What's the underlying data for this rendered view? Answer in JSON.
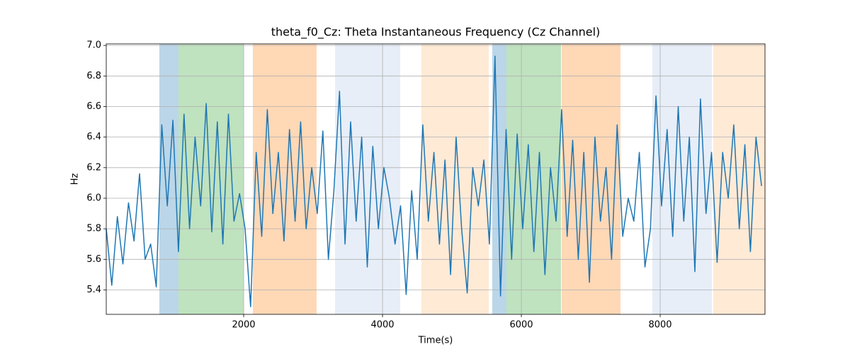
{
  "chart_data": {
    "type": "line",
    "title": "theta_f0_Cz: Theta Instantaneous Frequency (Cz Channel)",
    "x_label": "Time(s)",
    "y_label": "Hz",
    "xlim": [
      20,
      9510
    ],
    "ylim": [
      5.24,
      7.01
    ],
    "xticks": [
      2000,
      4000,
      6000,
      8000
    ],
    "yticks": [
      5.4,
      5.6,
      5.8,
      {
        "value": 6,
        "label": "6.0"
      },
      6.2,
      6.4,
      6.6,
      6.8,
      {
        "value": 7,
        "label": "7.0"
      }
    ],
    "grid": true,
    "spans": [
      {
        "start": 785,
        "end": 1061,
        "color": "#1f77b4"
      },
      {
        "start": 1061,
        "end": 2000,
        "color": "#2ca02c"
      },
      {
        "start": 2132,
        "end": 3050,
        "color": "#ff7f0e"
      },
      {
        "start": 3316,
        "end": 4255,
        "color": "#aec7e8"
      },
      {
        "start": 4561,
        "end": 5530,
        "color": "#ffbb78"
      },
      {
        "start": 5581,
        "end": 5785,
        "color": "#1f77b4"
      },
      {
        "start": 5785,
        "end": 6571,
        "color": "#2ca02c"
      },
      {
        "start": 6581,
        "end": 7428,
        "color": "#ff7f0e"
      },
      {
        "start": 7887,
        "end": 8744,
        "color": "#aec7e8"
      },
      {
        "start": 8765,
        "end": 9510,
        "color": "#ffbb78"
      }
    ],
    "x": [
      20,
      100,
      180,
      260,
      340,
      420,
      500,
      580,
      660,
      740,
      820,
      900,
      980,
      1060,
      1140,
      1220,
      1300,
      1380,
      1460,
      1540,
      1620,
      1700,
      1780,
      1860,
      1940,
      2020,
      2100,
      2180,
      2260,
      2340,
      2420,
      2500,
      2580,
      2660,
      2740,
      2820,
      2900,
      2980,
      3060,
      3140,
      3220,
      3300,
      3380,
      3460,
      3540,
      3620,
      3700,
      3780,
      3860,
      3940,
      4020,
      4100,
      4180,
      4260,
      4340,
      4420,
      4500,
      4580,
      4660,
      4740,
      4820,
      4900,
      4980,
      5060,
      5140,
      5220,
      5300,
      5380,
      5460,
      5540,
      5620,
      5700,
      5780,
      5860,
      5940,
      6020,
      6100,
      6180,
      6260,
      6340,
      6420,
      6500,
      6580,
      6660,
      6740,
      6820,
      6900,
      6980,
      7060,
      7140,
      7220,
      7300,
      7380,
      7460,
      7540,
      7620,
      7700,
      7780,
      7860,
      7940,
      8020,
      8100,
      8180,
      8260,
      8340,
      8420,
      8500,
      8580,
      8660,
      8740,
      8820,
      8900,
      8980,
      9060,
      9140,
      9220,
      9300,
      9380,
      9460
    ],
    "series": [
      {
        "color": "#1f77b4",
        "values": [
          5.8,
          5.43,
          5.88,
          5.57,
          5.97,
          5.72,
          6.16,
          5.6,
          5.7,
          5.42,
          6.48,
          5.95,
          6.51,
          5.65,
          6.55,
          5.8,
          6.4,
          5.95,
          6.62,
          5.78,
          6.5,
          5.7,
          6.55,
          5.85,
          6.03,
          5.8,
          5.29,
          6.3,
          5.75,
          6.58,
          5.9,
          6.3,
          5.72,
          6.45,
          5.85,
          6.5,
          5.8,
          6.2,
          5.9,
          6.44,
          5.6,
          6.05,
          6.7,
          5.7,
          6.5,
          5.85,
          6.4,
          5.55,
          6.34,
          5.8,
          6.2,
          6.0,
          5.7,
          5.95,
          5.37,
          6.05,
          5.6,
          6.48,
          5.85,
          6.3,
          5.7,
          6.25,
          5.5,
          6.4,
          5.8,
          5.38,
          6.2,
          5.95,
          6.25,
          5.7,
          6.93,
          5.36,
          6.45,
          5.6,
          6.42,
          5.8,
          6.35,
          5.65,
          6.3,
          5.5,
          6.2,
          5.85,
          6.58,
          5.75,
          6.38,
          5.6,
          6.3,
          5.45,
          6.4,
          5.85,
          6.2,
          5.6,
          6.48,
          5.75,
          6.0,
          5.85,
          6.3,
          5.55,
          5.8,
          6.67,
          5.95,
          6.45,
          5.75,
          6.6,
          5.85,
          6.4,
          5.52,
          6.65,
          5.9,
          6.3,
          5.58,
          6.3,
          6.0,
          6.48,
          5.8,
          6.35,
          5.65,
          6.4,
          6.08
        ]
      }
    ]
  }
}
